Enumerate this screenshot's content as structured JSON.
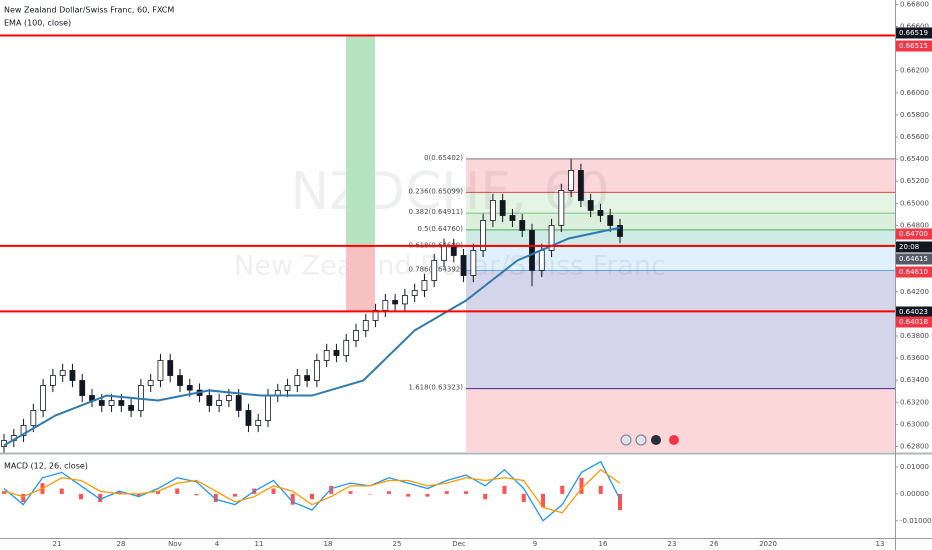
{
  "chart_data": {
    "type": "candlestick",
    "title": "New Zealand Dollar/Swiss Franc, 60, FXCM",
    "indicator_label": "EMA (100, close)",
    "watermark": {
      "symbol": "NZDCHF, 60",
      "description": "New Zealand Dollar/Swiss Franc"
    },
    "ylim": [
      0.6275,
      0.6684
    ],
    "yticks": [
      {
        "value": 0.628,
        "label": "0.62800"
      },
      {
        "value": 0.63,
        "label": "0.63000"
      },
      {
        "value": 0.632,
        "label": "0.63200"
      },
      {
        "value": 0.634,
        "label": "0.63400"
      },
      {
        "value": 0.636,
        "label": "0.63600"
      },
      {
        "value": 0.638,
        "label": "0.63800"
      },
      {
        "value": 0.64,
        "label": "0.64000"
      },
      {
        "value": 0.642,
        "label": "0.64200"
      },
      {
        "value": 0.644,
        "label": "0.64400"
      },
      {
        "value": 0.646,
        "label": "0.64600"
      },
      {
        "value": 0.648,
        "label": "0.64800"
      },
      {
        "value": 0.65,
        "label": "0.65000"
      },
      {
        "value": 0.652,
        "label": "0.65200"
      },
      {
        "value": 0.654,
        "label": "0.65400"
      },
      {
        "value": 0.656,
        "label": "0.65600"
      },
      {
        "value": 0.658,
        "label": "0.65800"
      },
      {
        "value": 0.66,
        "label": "0.66000"
      },
      {
        "value": 0.662,
        "label": "0.66200"
      },
      {
        "value": 0.664,
        "label": "0.66400"
      },
      {
        "value": 0.666,
        "label": "0.66600"
      },
      {
        "value": 0.668,
        "label": "0.66800"
      }
    ],
    "x_labels": [
      "21",
      "28",
      "Nov",
      "4",
      "11",
      "18",
      "25",
      "Dec",
      "9",
      "16",
      "23",
      "26",
      "2020",
      "13"
    ],
    "up_color": "#ffffff",
    "down_color": "#131722",
    "candles": {
      "open": [
        0.628,
        0.62854,
        0.62899,
        0.6299,
        0.63126,
        0.63352,
        0.63442,
        0.63488,
        0.63397,
        0.63261,
        0.63216,
        0.63171,
        0.63216,
        0.63171,
        0.63126,
        0.63352,
        0.63397,
        0.63578,
        0.63442,
        0.63352,
        0.6331,
        0.63261,
        0.63171,
        0.63216,
        0.63261,
        0.63126,
        0.6299,
        0.63035,
        0.63261,
        0.63307,
        0.63352,
        0.63442,
        0.63397,
        0.63578,
        0.63669,
        0.63623,
        0.63759,
        0.6385,
        0.6394,
        0.64031,
        0.64121,
        0.6409,
        0.64166,
        0.64212,
        0.64302,
        0.64483,
        0.64619,
        0.64528,
        0.64347,
        0.64574,
        0.64845,
        0.65026,
        0.6489,
        0.64845,
        0.64755,
        0.64393,
        0.64574,
        0.648,
        0.65117,
        0.65298,
        0.65026,
        0.64936,
        0.6489,
        0.648
      ],
      "high": [
        0.62914,
        0.62959,
        0.6305,
        0.63186,
        0.63412,
        0.63502,
        0.63548,
        0.63548,
        0.63457,
        0.63321,
        0.63276,
        0.63276,
        0.63276,
        0.63231,
        0.63412,
        0.63457,
        0.63638,
        0.63638,
        0.63502,
        0.63412,
        0.6337,
        0.63321,
        0.63276,
        0.63321,
        0.63321,
        0.63186,
        0.63095,
        0.63321,
        0.63367,
        0.63412,
        0.63502,
        0.63502,
        0.63638,
        0.63729,
        0.63729,
        0.63819,
        0.6391,
        0.64,
        0.64091,
        0.64181,
        0.64181,
        0.64226,
        0.64272,
        0.64362,
        0.64543,
        0.64679,
        0.64679,
        0.64588,
        0.64634,
        0.64905,
        0.65086,
        0.65086,
        0.6495,
        0.64905,
        0.64815,
        0.64634,
        0.6486,
        0.65177,
        0.65402,
        0.65358,
        0.65086,
        0.64996,
        0.6495,
        0.6486
      ],
      "low": [
        0.6274,
        0.62794,
        0.62839,
        0.6293,
        0.63066,
        0.63292,
        0.63382,
        0.63337,
        0.63201,
        0.63156,
        0.63111,
        0.63111,
        0.63111,
        0.63066,
        0.63066,
        0.63292,
        0.63337,
        0.63382,
        0.63292,
        0.6325,
        0.63201,
        0.63111,
        0.63111,
        0.63156,
        0.63066,
        0.6293,
        0.6293,
        0.62975,
        0.63201,
        0.63247,
        0.63292,
        0.63337,
        0.63337,
        0.63518,
        0.63563,
        0.63563,
        0.63699,
        0.6379,
        0.6388,
        0.63971,
        0.6403,
        0.6403,
        0.64106,
        0.64152,
        0.64242,
        0.64423,
        0.64468,
        0.64287,
        0.64287,
        0.64514,
        0.64785,
        0.6483,
        0.64785,
        0.64695,
        0.6425,
        0.64333,
        0.64514,
        0.6474,
        0.65057,
        0.64966,
        0.64876,
        0.6483,
        0.6474,
        0.6464
      ],
      "close": [
        0.62854,
        0.62899,
        0.6299,
        0.63126,
        0.63352,
        0.63442,
        0.63488,
        0.63397,
        0.63261,
        0.63216,
        0.63171,
        0.63216,
        0.63171,
        0.63126,
        0.63352,
        0.63397,
        0.63578,
        0.63442,
        0.63352,
        0.6331,
        0.63261,
        0.63171,
        0.63216,
        0.63261,
        0.63126,
        0.6299,
        0.63035,
        0.63261,
        0.63307,
        0.63352,
        0.63442,
        0.63397,
        0.63578,
        0.63669,
        0.63623,
        0.63759,
        0.6385,
        0.6394,
        0.64031,
        0.64121,
        0.6409,
        0.64166,
        0.64212,
        0.64302,
        0.64483,
        0.64619,
        0.64528,
        0.64347,
        0.64574,
        0.64845,
        0.65026,
        0.6489,
        0.64845,
        0.64755,
        0.64393,
        0.64574,
        0.648,
        0.65117,
        0.65298,
        0.65026,
        0.64936,
        0.6489,
        0.648,
        0.647
      ]
    },
    "ema": {
      "color": "#2f7ab0",
      "values": [
        0.62809,
        0.6308,
        0.63261,
        0.63216,
        0.63307,
        0.63261,
        0.63261,
        0.63397,
        0.6385,
        0.64121,
        0.64483,
        0.64682,
        0.6478
      ]
    },
    "horizontal_lines": {
      "color": "#ff0000",
      "values": [
        0.66519,
        0.64615,
        0.64023
      ]
    },
    "position_colors": [
      "#b7e4c0",
      "#f7c1c1"
    ],
    "price_labels": [
      {
        "label": "0.66519",
        "color": "#131722"
      },
      {
        "label": "0.66515",
        "color": "#f23645"
      },
      {
        "label": "0.64700",
        "color": "#f23645"
      },
      {
        "label": "20:08",
        "color": "#131722"
      },
      {
        "label": "0.64615",
        "color": "#555a66"
      },
      {
        "label": "0.64610",
        "color": "#f23645"
      },
      {
        "label": "0.64023",
        "color": "#131722"
      },
      {
        "label": "0.64018",
        "color": "#f23645"
      }
    ],
    "fib_levels": [
      {
        "label": "0(0.65402)",
        "value": 0.65402,
        "color": "#787b86"
      },
      {
        "label": "0.236(0.65099)",
        "value": 0.65099,
        "color": "#f23645"
      },
      {
        "label": "0.382(0.64911)",
        "value": 0.64911,
        "color": "#81c784"
      },
      {
        "label": "0.5(0.64760)",
        "value": 0.6476,
        "color": "#4caf50"
      },
      {
        "label": "0.618(0.64609)",
        "value": 0.64609,
        "color": "#089981"
      },
      {
        "label": "0.786(0.64392)",
        "value": 0.64392,
        "color": "#64b5f6"
      },
      {
        "label": "1.618(0.63323)",
        "value": 0.63323,
        "color": "#2a2e9c"
      }
    ],
    "macd": {
      "label": "MACD (12, 26, close)",
      "ylim": [
        -0.0164,
        0.0141
      ],
      "yticks": [
        {
          "value": 0.01,
          "label": "0.01000"
        },
        {
          "value": 0,
          "label": "0.00000"
        },
        {
          "value": -0.01,
          "label": "-0.01000"
        }
      ],
      "series": [
        {
          "name": "MACD",
          "color": "#2196f3",
          "values": [
            0.002,
            -0.004,
            0.006,
            0.008,
            0.003,
            -0.002,
            0.001,
            -0.001,
            0.002,
            0.006,
            0.0045,
            -0.002,
            -0.004,
            0.001,
            0.005,
            -0.003,
            -0.006,
            0.002,
            0.004,
            0.003,
            0.006,
            0.004,
            0.002,
            0.005,
            0.007,
            0.003,
            0.009,
            0.002,
            -0.01,
            -0.004,
            0.008,
            0.012,
            -0.002
          ]
        },
        {
          "name": "Signal",
          "color": "#ff9800",
          "values": [
            0.001,
            -0.001,
            0.002,
            0.006,
            0.005,
            0.001,
            0,
            0,
            0.001,
            0.004,
            0.005,
            0.001,
            -0.003,
            -0.001,
            0.003,
            0.001,
            -0.004,
            -0.001,
            0.003,
            0.003,
            0.005,
            0.005,
            0.003,
            0.004,
            0.006,
            0.005,
            0.006,
            0.005,
            -0.005,
            -0.007,
            0.002,
            0.009,
            0.004
          ]
        }
      ],
      "histogram": {
        "color": "#ff5252",
        "values": [
          0.001,
          -0.003,
          0.004,
          0.002,
          -0.002,
          -0.003,
          0.001,
          -0.001,
          0.001,
          0.002,
          -0.0005,
          -0.003,
          -0.001,
          0.002,
          0.002,
          -0.004,
          -0.002,
          0.003,
          0.001,
          0,
          0.001,
          -0.001,
          -0.001,
          0.001,
          0.001,
          -0.002,
          0.003,
          -0.003,
          -0.005,
          0.003,
          0.006,
          0.003,
          -0.006
        ]
      }
    }
  }
}
